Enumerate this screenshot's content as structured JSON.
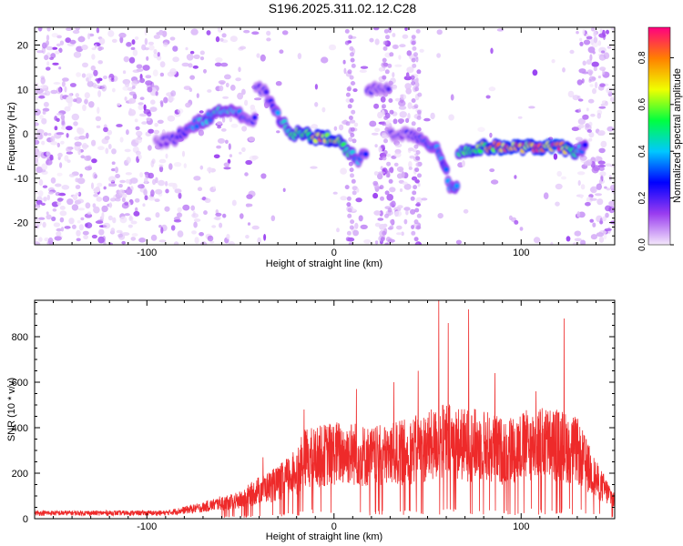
{
  "title": "S196.2025.311.02.12.C28",
  "chart_data": [
    {
      "type": "heatmap",
      "xlabel": "Height of straight line (km)",
      "ylabel": "Frequency (Hz)",
      "xlim": [
        -160,
        150
      ],
      "ylim": [
        -25,
        24
      ],
      "xticks": [
        -100,
        0,
        100
      ],
      "yticks": [
        -20,
        -10,
        0,
        10,
        20
      ],
      "colorbar": {
        "label": "Normalized spectral amplitude",
        "range": [
          0,
          0.93
        ],
        "ticks": [
          "0.0",
          "0.2",
          "0.4",
          "0.6",
          "0.8"
        ],
        "tick_values": [
          0,
          0.2,
          0.4,
          0.6,
          0.8
        ],
        "stops": [
          "#f4e8fb",
          "#9a3cf0",
          "#0000ff",
          "#00c8ff",
          "#00ff40",
          "#f0ff00",
          "#ff8000",
          "#ff0080"
        ]
      },
      "ridge": {
        "x": [
          -95,
          -85,
          -75,
          -65,
          -55,
          -45,
          -38,
          -30,
          -22,
          -15,
          -8,
          0,
          8,
          12,
          16,
          20,
          40,
          48,
          55,
          60,
          62,
          70,
          80,
          90,
          100,
          110,
          120,
          130,
          135
        ],
        "frequency": [
          -2,
          -1,
          2,
          4,
          6,
          3,
          10,
          4,
          0,
          0,
          -1,
          -1,
          -4,
          -6,
          -5,
          10,
          0,
          -2,
          -3,
          -8,
          -12,
          -4,
          -3,
          -3,
          -3,
          -3,
          -3,
          -4,
          -3
        ],
        "amplitude": [
          0.15,
          0.25,
          0.35,
          0.45,
          0.4,
          0.25,
          0.2,
          0.35,
          0.55,
          0.6,
          0.75,
          0.7,
          0.5,
          0.4,
          0.3,
          0.2,
          0.2,
          0.3,
          0.35,
          0.4,
          0.35,
          0.55,
          0.65,
          0.85,
          0.8,
          0.8,
          0.9,
          0.5,
          0.3
        ]
      }
    },
    {
      "type": "line",
      "xlabel": "Height of straight line (km)",
      "ylabel": "SNR (10 * v/v)",
      "xlim": [
        -160,
        150
      ],
      "ylim": [
        0,
        960
      ],
      "xticks": [
        -100,
        0,
        100
      ],
      "yticks": [
        0,
        200,
        400,
        600,
        800
      ],
      "series": [
        {
          "name": "SNR",
          "color": "#ee2a2a",
          "x": [
            -160,
            -120,
            -90,
            -70,
            -50,
            -40,
            -30,
            -20,
            -15,
            -10,
            0,
            10,
            20,
            30,
            40,
            50,
            60,
            70,
            80,
            90,
            100,
            110,
            120,
            130,
            140,
            150
          ],
          "snr": [
            25,
            25,
            25,
            50,
            90,
            140,
            170,
            230,
            300,
            300,
            320,
            320,
            300,
            310,
            330,
            350,
            380,
            360,
            360,
            330,
            350,
            370,
            360,
            330,
            190,
            90
          ],
          "peaks": [
            {
              "x": -38,
              "y": 270
            },
            {
              "x": -16,
              "y": 480
            },
            {
              "x": 12,
              "y": 570
            },
            {
              "x": 32,
              "y": 600
            },
            {
              "x": 45,
              "y": 650
            },
            {
              "x": 56,
              "y": 960
            },
            {
              "x": 61,
              "y": 860
            },
            {
              "x": 72,
              "y": 920
            },
            {
              "x": 86,
              "y": 640
            },
            {
              "x": 108,
              "y": 560
            },
            {
              "x": 123,
              "y": 880
            }
          ]
        }
      ]
    }
  ]
}
